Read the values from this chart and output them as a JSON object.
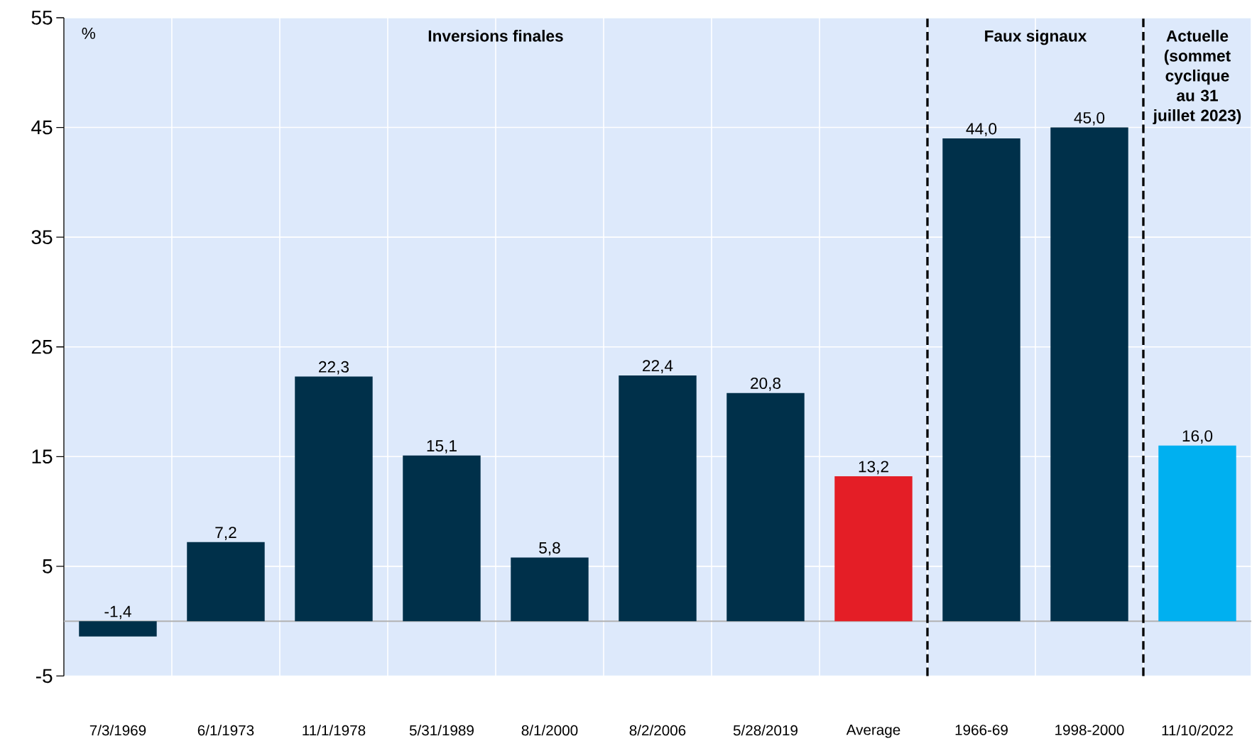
{
  "chart_data": {
    "type": "bar",
    "ylabel": "%",
    "categories": [
      "7/3/1969",
      "6/1/1973",
      "11/1/1978",
      "5/31/1989",
      "8/1/2000",
      "8/2/2006",
      "5/28/2019",
      "Average",
      "1966-69",
      "1998-2000",
      "11/10/2022"
    ],
    "values": [
      -1.4,
      7.2,
      22.3,
      15.1,
      5.8,
      22.4,
      20.8,
      13.2,
      44.0,
      45.0,
      16.0
    ],
    "value_labels": [
      "-1,4",
      "7,2",
      "22,3",
      "15,1",
      "5,8",
      "22,4",
      "20,8",
      "13,2",
      "44,0",
      "45,0",
      "16,0"
    ],
    "colors": [
      "#00304a",
      "#00304a",
      "#00304a",
      "#00304a",
      "#00304a",
      "#00304a",
      "#00304a",
      "#e41e26",
      "#00304a",
      "#00304a",
      "#00b0f0"
    ],
    "ylim": [
      -5,
      55
    ],
    "yticks": [
      -5,
      5,
      15,
      25,
      35,
      45,
      55
    ],
    "grid": true,
    "annotations": [
      "**Inversions finales**",
      "**Faux signaux**",
      "**Actuelle (sommet cyclique au 31 juillet 2023)**"
    ]
  }
}
